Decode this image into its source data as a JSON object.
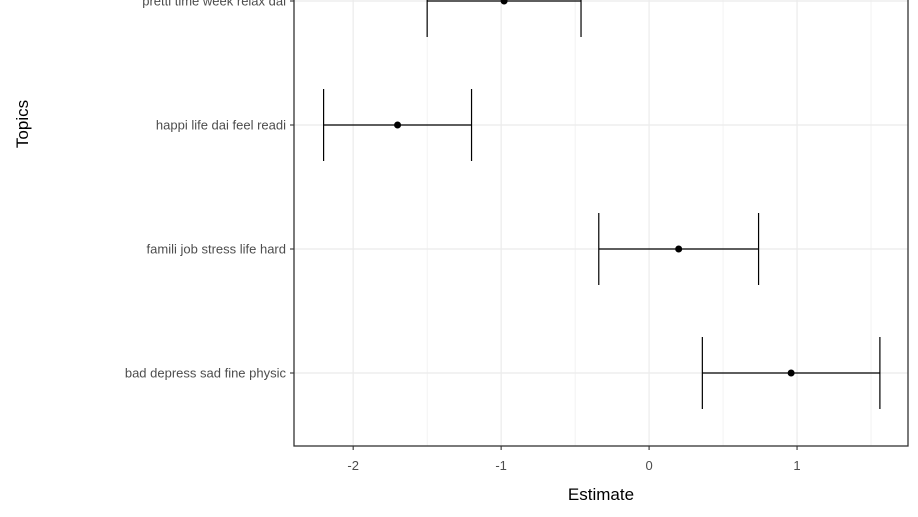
{
  "chart_data": {
    "type": "scatter",
    "subtype": "errorbar",
    "xlabel": "Estimate",
    "ylabel": "Topics",
    "xlim": [
      -2.4,
      1.75
    ],
    "x_ticks": [
      -2,
      -1,
      0,
      1
    ],
    "x_tick_labels": [
      "-2",
      "-1",
      "0",
      "1"
    ],
    "grid": true,
    "theme": "bw",
    "categories": [
      "bad depress sad fine physic",
      "famili job stress life hard",
      "happi life dai feel readi",
      "pretti time week relax dai"
    ],
    "points": [
      {
        "topic": "bad depress sad fine physic",
        "estimate": 0.96,
        "lower": 0.36,
        "upper": 1.56
      },
      {
        "topic": "famili job stress life hard",
        "estimate": 0.2,
        "lower": -0.34,
        "upper": 0.74
      },
      {
        "topic": "happi life dai feel readi",
        "estimate": -1.7,
        "lower": -2.2,
        "upper": -1.2
      },
      {
        "topic": "pretti time week relax dai",
        "estimate": -0.98,
        "lower": -1.5,
        "upper": -0.46
      }
    ],
    "colors": {
      "point": "#000000",
      "errorbar": "#000000",
      "grid": "#ebebeb",
      "panel_border": "#333333"
    }
  }
}
